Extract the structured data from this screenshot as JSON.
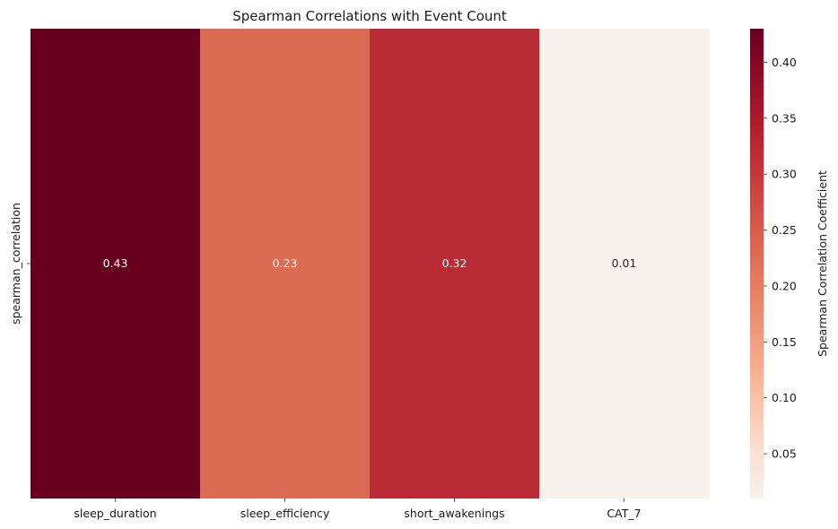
{
  "chart_data": {
    "type": "heatmap",
    "title": "Spearman Correlations with Event Count",
    "row_labels": [
      "spearman_correlation"
    ],
    "col_labels": [
      "sleep_duration",
      "sleep_efficiency",
      "short_awakenings",
      "CAT_7"
    ],
    "values": [
      [
        0.43,
        0.23,
        0.32,
        0.01
      ]
    ],
    "cell_annotations": [
      "0.43",
      "0.23",
      "0.32",
      "0.01"
    ],
    "colorbar": {
      "label": "Spearman Correlation Coefficient",
      "range": [
        0.01,
        0.43
      ],
      "ticks": [
        0.05,
        0.1,
        0.15,
        0.2,
        0.25,
        0.3,
        0.35,
        0.4
      ],
      "tick_labels": [
        "0.05",
        "0.10",
        "0.15",
        "0.20",
        "0.25",
        "0.30",
        "0.35",
        "0.40"
      ],
      "colormap": "RdBu_r (positive half)"
    },
    "colors": {
      "max": "#67001f",
      "mid_high": "#b92932",
      "mid": "#e07a5f",
      "min": "#f6f1ed"
    }
  }
}
